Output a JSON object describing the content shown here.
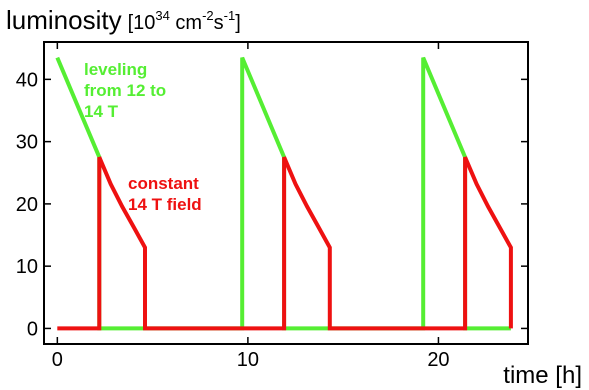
{
  "chart_data": {
    "type": "line",
    "ylabel_main": "luminosity",
    "ylabel_units_prefix": "[10",
    "ylabel_units_exp1": "34",
    "ylabel_units_mid": " cm",
    "ylabel_units_exp2": "-2",
    "ylabel_units_s": "s",
    "ylabel_units_exp3": "-1",
    "ylabel_units_suffix": "]",
    "xlabel": "time [h]",
    "xlim": [
      -0.7,
      24.7
    ],
    "ylim": [
      -2.5,
      46
    ],
    "xticks": [
      0,
      10,
      20
    ],
    "yticks": [
      0,
      10,
      20,
      30,
      40
    ],
    "annotations": [
      {
        "lines": [
          "leveling",
          "from 12 to",
          "14 T"
        ],
        "color": "#55ee33"
      },
      {
        "lines": [
          "constant",
          "14 T field"
        ],
        "color": "#ee1111"
      }
    ],
    "series": [
      {
        "color": "#55ee33",
        "values": [
          [
            0.0,
            43.5
          ],
          [
            2.2,
            27.5
          ],
          [
            2.2,
            0.0
          ],
          [
            9.7,
            0.0
          ],
          [
            9.7,
            43.5
          ],
          [
            11.9,
            27.5
          ],
          [
            11.9,
            0.0
          ],
          [
            19.2,
            0.0
          ],
          [
            19.2,
            43.5
          ],
          [
            21.4,
            27.5
          ],
          [
            21.4,
            0.0
          ],
          [
            23.8,
            0.0
          ]
        ]
      },
      {
        "color": "#ee1111",
        "values": [
          [
            0.0,
            0.0
          ],
          [
            2.2,
            0.0
          ],
          [
            2.2,
            27.5
          ],
          [
            2.8,
            23.2
          ],
          [
            3.4,
            19.6
          ],
          [
            4.0,
            16.3
          ],
          [
            4.6,
            13.0
          ],
          [
            4.6,
            0.0
          ],
          [
            11.9,
            0.0
          ],
          [
            11.9,
            27.5
          ],
          [
            12.5,
            23.2
          ],
          [
            13.1,
            19.6
          ],
          [
            13.7,
            16.3
          ],
          [
            14.3,
            13.0
          ],
          [
            14.3,
            0.0
          ],
          [
            21.4,
            0.0
          ],
          [
            21.4,
            27.5
          ],
          [
            22.0,
            23.2
          ],
          [
            22.6,
            19.6
          ],
          [
            23.2,
            16.3
          ],
          [
            23.8,
            13.0
          ],
          [
            23.8,
            0.0
          ]
        ]
      }
    ]
  }
}
